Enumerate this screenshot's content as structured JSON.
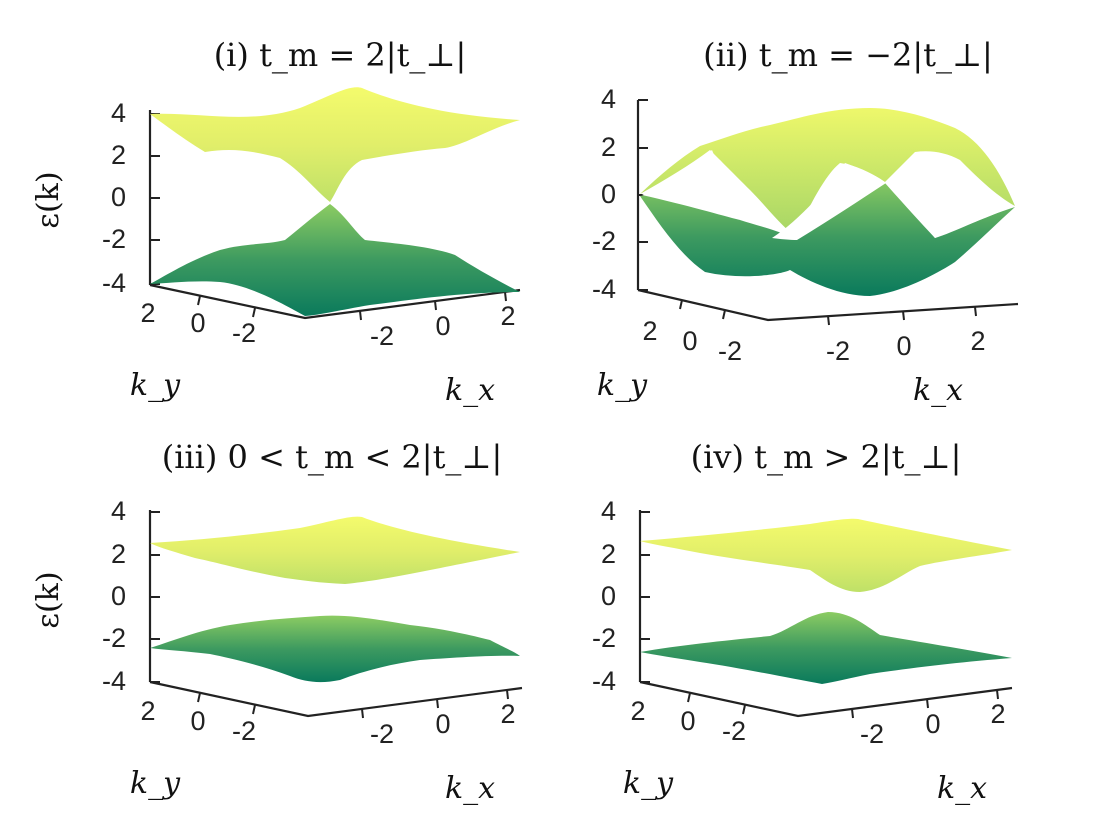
{
  "chart_data": [
    {
      "type": "surface",
      "title": "(i) t_m = 2|t_⊥|",
      "xlabel": "k_x",
      "ylabel": "k_y",
      "zlabel": "ε(k)",
      "xticks": [
        "-2",
        "0",
        "2"
      ],
      "yticks": [
        "2",
        "0",
        "-2"
      ],
      "zticks": [
        "4",
        "2",
        "0",
        "-2",
        "-4"
      ],
      "zlim": [
        -4,
        4
      ],
      "upper_band": {
        "max": 4,
        "min": 0
      },
      "lower_band": {
        "max": 0,
        "min": -4
      },
      "gap": 0
    },
    {
      "type": "surface",
      "title": "(ii) t_m = −2|t_⊥|",
      "xlabel": "k_x",
      "ylabel": "k_y",
      "zlabel": "",
      "xticks": [
        "-2",
        "0",
        "2"
      ],
      "yticks": [
        "2",
        "0",
        "-2"
      ],
      "zticks": [
        "4",
        "2",
        "0",
        "-2",
        "-4"
      ],
      "zlim": [
        -4,
        4
      ],
      "upper_band": {
        "max": 4,
        "min": 0
      },
      "lower_band": {
        "max": 0,
        "min": -4
      },
      "gap": 0
    },
    {
      "type": "surface",
      "title": "(iii) 0 < t_m < 2|t_⊥|",
      "xlabel": "k_x",
      "ylabel": "k_y",
      "zlabel": "ε(k)",
      "xticks": [
        "-2",
        "0",
        "2"
      ],
      "yticks": [
        "2",
        "0",
        "-2"
      ],
      "zticks": [
        "4",
        "2",
        "0",
        "-2",
        "-4"
      ],
      "zlim": [
        -4,
        4
      ],
      "upper_band": {
        "max": 3.5,
        "min": 1
      },
      "lower_band": {
        "max": -1.5,
        "min": -4
      },
      "gap": 2.5
    },
    {
      "type": "surface",
      "title": "(iv) t_m > 2|t_⊥|",
      "xlabel": "k_x",
      "ylabel": "k_y",
      "zlabel": "",
      "xticks": [
        "-2",
        "0",
        "2"
      ],
      "yticks": [
        "2",
        "0",
        "-2"
      ],
      "zticks": [
        "4",
        "2",
        "0",
        "-2",
        "-4"
      ],
      "zlim": [
        -4,
        4
      ],
      "upper_band": {
        "max": 3.5,
        "min": 1
      },
      "lower_band": {
        "max": -1,
        "min": -4
      },
      "gap": 2
    }
  ],
  "colors": {
    "high": "#f2fb6e",
    "mid": "#84c35f",
    "low": "#0a7a5c"
  }
}
